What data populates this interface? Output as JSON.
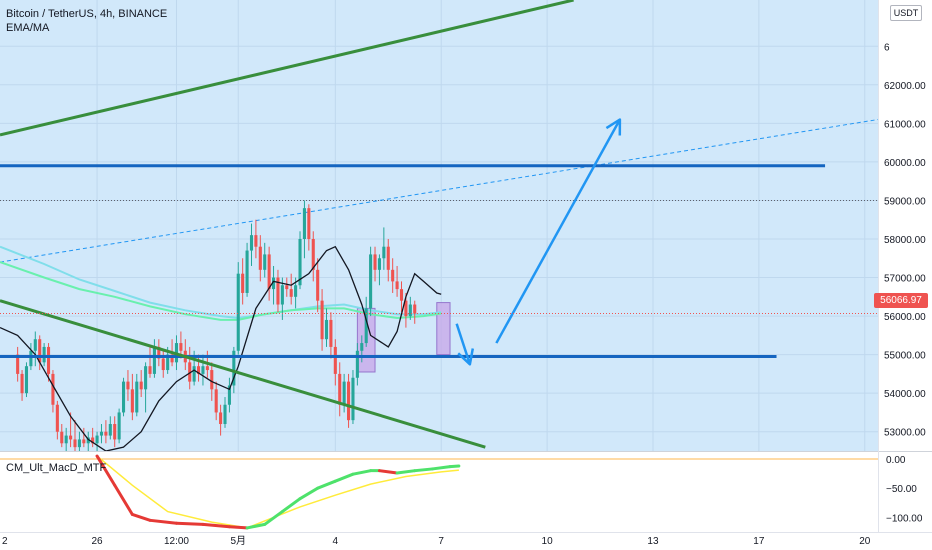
{
  "header": {
    "symbol_line": "Bitcoin / TetherUS, 4h, BINANCE",
    "indicator": "EMA/MA",
    "quote_currency": "USDT"
  },
  "indicator_pane": {
    "name": "CM_Ult_MacD_MTF"
  },
  "last_price": {
    "value": 56066.97,
    "label": "56066.97",
    "color": "#ef5350"
  },
  "colors": {
    "up": "#26a69a",
    "down": "#ef5350",
    "background": "#d1e8fa",
    "level_line": "#1565c0",
    "trend_line": "#388e3c",
    "arrow": "#2196f3",
    "ema_line": "#131722",
    "ma_green": "#69f0ae",
    "ma_cyan": "#80deea",
    "highlight_box": "#c7a6e8",
    "macd_up": "#4ee26b",
    "macd_down": "#e53935",
    "signal_line": "#ffeb3b",
    "zero_line": "#ffb74d"
  },
  "chart_data": [
    {
      "type": "candlestick",
      "title": "Bitcoin / TetherUS, 4h, BINANCE",
      "ylim": [
        52500,
        64200
      ],
      "y_ticks": [
        "53000.00",
        "54000.00",
        "55000.00",
        "56000.00",
        "57000.00",
        "58000.00",
        "59000.00",
        "60000.00",
        "61000.00",
        "62000.00",
        "6"
      ],
      "y_tick_values": [
        53000,
        54000,
        55000,
        56000,
        57000,
        58000,
        59000,
        60000,
        61000,
        62000,
        63000
      ],
      "x_ticks": [
        {
          "label": "2",
          "index": -4
        },
        {
          "label": "26",
          "index": 18
        },
        {
          "label": "12:00",
          "index": 36
        },
        {
          "label": "5月",
          "index": 50
        },
        {
          "label": "4",
          "index": 72
        },
        {
          "label": "7",
          "index": 96
        },
        {
          "label": "10",
          "index": 120
        },
        {
          "label": "13",
          "index": 144
        },
        {
          "label": "17",
          "index": 168
        },
        {
          "label": "20",
          "index": 192
        }
      ],
      "x_index_range": [
        -4,
        195
      ],
      "grid": true,
      "candles": [
        [
          55000,
          55200,
          54300,
          54500
        ],
        [
          54500,
          54600,
          53800,
          54000
        ],
        [
          54000,
          54800,
          53900,
          54700
        ],
        [
          54700,
          55300,
          54600,
          55100
        ],
        [
          55100,
          55600,
          54700,
          55400
        ],
        [
          55400,
          55500,
          54600,
          54800
        ],
        [
          54800,
          55300,
          54700,
          55200
        ],
        [
          55200,
          55300,
          54300,
          54500
        ],
        [
          54500,
          54600,
          53500,
          53700
        ],
        [
          53700,
          53800,
          52800,
          53000
        ],
        [
          53000,
          53200,
          52600,
          52700
        ],
        [
          52700,
          53100,
          52500,
          52900
        ],
        [
          52900,
          53500,
          52600,
          52800
        ],
        [
          52800,
          53300,
          52500,
          52600
        ],
        [
          52600,
          53000,
          52500,
          52800
        ],
        [
          52800,
          53100,
          52600,
          52700
        ],
        [
          52700,
          53000,
          52500,
          52850
        ],
        [
          52850,
          53100,
          52600,
          52700
        ],
        [
          52700,
          53000,
          52500,
          52900
        ],
        [
          52900,
          53200,
          52700,
          53000
        ],
        [
          53000,
          53300,
          52700,
          52900
        ],
        [
          52900,
          53400,
          52800,
          53200
        ],
        [
          53200,
          53400,
          52600,
          52800
        ],
        [
          52800,
          53600,
          52700,
          53500
        ],
        [
          53500,
          54400,
          53400,
          54300
        ],
        [
          54300,
          54600,
          53800,
          54100
        ],
        [
          54100,
          54500,
          53300,
          53500
        ],
        [
          53500,
          54500,
          53400,
          54300
        ],
        [
          54300,
          54600,
          53900,
          54100
        ],
        [
          54100,
          54800,
          53500,
          54700
        ],
        [
          54700,
          55200,
          54400,
          54500
        ],
        [
          54500,
          55400,
          54400,
          55200
        ],
        [
          55200,
          55400,
          54700,
          54900
        ],
        [
          54900,
          55100,
          54400,
          54600
        ],
        [
          54600,
          55200,
          54500,
          55000
        ],
        [
          55000,
          55400,
          54700,
          54800
        ],
        [
          54800,
          55500,
          54600,
          55300
        ],
        [
          55300,
          55600,
          54900,
          55100
        ],
        [
          55100,
          55400,
          54600,
          54800
        ],
        [
          54800,
          55200,
          54100,
          54300
        ],
        [
          54300,
          55100,
          54200,
          54700
        ],
        [
          54700,
          55000,
          54300,
          54500
        ],
        [
          54500,
          55000,
          54200,
          54700
        ],
        [
          54700,
          55100,
          54400,
          54600
        ],
        [
          54600,
          54800,
          53800,
          54100
        ],
        [
          54100,
          54300,
          53300,
          53500
        ],
        [
          53500,
          53700,
          52900,
          53200
        ],
        [
          53200,
          53900,
          53100,
          53700
        ],
        [
          53700,
          54400,
          53500,
          54200
        ],
        [
          54200,
          55200,
          54000,
          55100
        ],
        [
          55100,
          57400,
          55000,
          57100
        ],
        [
          57100,
          57500,
          56300,
          56600
        ],
        [
          56600,
          57900,
          56500,
          57700
        ],
        [
          57700,
          58400,
          57300,
          58100
        ],
        [
          58100,
          58500,
          57500,
          57800
        ],
        [
          57800,
          58100,
          56900,
          57200
        ],
        [
          57200,
          57900,
          57000,
          57600
        ],
        [
          57600,
          57800,
          56400,
          56700
        ],
        [
          56700,
          57300,
          56300,
          57000
        ],
        [
          57000,
          57200,
          56100,
          56300
        ],
        [
          56300,
          57000,
          55900,
          56800
        ],
        [
          56800,
          57000,
          56500,
          56700
        ],
        [
          56700,
          57100,
          56300,
          56500
        ],
        [
          56500,
          57000,
          56200,
          56800
        ],
        [
          56800,
          58200,
          56700,
          58000
        ],
        [
          58000,
          59000,
          57500,
          58800
        ],
        [
          58800,
          58900,
          57700,
          58000
        ],
        [
          58000,
          58200,
          56900,
          57200
        ],
        [
          57200,
          57500,
          56100,
          56400
        ],
        [
          56400,
          56700,
          55100,
          55400
        ],
        [
          55400,
          56200,
          55200,
          55900
        ],
        [
          55900,
          56100,
          54900,
          55200
        ],
        [
          55200,
          55400,
          54200,
          54500
        ],
        [
          54500,
          54800,
          53400,
          53700
        ],
        [
          53700,
          54500,
          53500,
          54300
        ],
        [
          54300,
          54500,
          53100,
          53300
        ],
        [
          53300,
          54600,
          53200,
          54400
        ],
        [
          54400,
          55300,
          54200,
          55100
        ],
        [
          55100,
          55500,
          54800,
          55300
        ],
        [
          55300,
          56500,
          55200,
          56200
        ],
        [
          56200,
          57800,
          56000,
          57600
        ],
        [
          57600,
          57800,
          56900,
          57200
        ],
        [
          57200,
          57600,
          56800,
          57500
        ],
        [
          57500,
          58300,
          57200,
          57800
        ],
        [
          57800,
          58000,
          56900,
          57200
        ],
        [
          57200,
          57500,
          56600,
          56900
        ],
        [
          56900,
          57300,
          56500,
          56700
        ],
        [
          56700,
          56900,
          56100,
          56400
        ],
        [
          56400,
          56600,
          55700,
          56000
        ],
        [
          56000,
          56500,
          55900,
          56300
        ],
        [
          56300,
          56400,
          55800,
          56067
        ]
      ],
      "candle_start_index": 0,
      "series": [
        {
          "kind": "line",
          "values": [
            [
              -4,
              55700
            ],
            [
              0,
              55500
            ],
            [
              4,
              55000
            ],
            [
              8,
              54200
            ],
            [
              12,
              53400
            ],
            [
              16,
              52800
            ],
            [
              20,
              52500
            ],
            [
              24,
              52600
            ],
            [
              28,
              53000
            ],
            [
              32,
              53800
            ],
            [
              36,
              54300
            ],
            [
              40,
              54600
            ],
            [
              44,
              54300
            ],
            [
              48,
              54100
            ],
            [
              50,
              54700
            ],
            [
              54,
              56200
            ],
            [
              58,
              56900
            ],
            [
              62,
              56800
            ],
            [
              66,
              57100
            ],
            [
              70,
              57700
            ],
            [
              72,
              57800
            ],
            [
              75,
              57200
            ],
            [
              78,
              56300
            ],
            [
              80,
              55500
            ],
            [
              84,
              55200
            ],
            [
              86,
              55600
            ],
            [
              88,
              56500
            ],
            [
              90,
              57100
            ],
            [
              92,
              56900
            ],
            [
              95,
              56600
            ],
            [
              96,
              56567
            ]
          ]
        },
        {
          "kind": "line",
          "values": [
            [
              -4,
              57400
            ],
            [
              6,
              57000
            ],
            [
              14,
              56700
            ],
            [
              22,
              56500
            ],
            [
              30,
              56250
            ],
            [
              38,
              56050
            ],
            [
              46,
              55900
            ],
            [
              50,
              55900
            ],
            [
              56,
              56050
            ],
            [
              62,
              56150
            ],
            [
              68,
              56200
            ],
            [
              74,
              56200
            ],
            [
              80,
              56050
            ],
            [
              86,
              55950
            ],
            [
              92,
              56000
            ],
            [
              96,
              56067
            ]
          ]
        },
        {
          "kind": "line",
          "values": [
            [
              -4,
              57800
            ],
            [
              6,
              57350
            ],
            [
              14,
              56950
            ],
            [
              22,
              56650
            ],
            [
              30,
              56350
            ],
            [
              38,
              56150
            ],
            [
              46,
              56000
            ],
            [
              50,
              55950
            ],
            [
              56,
              56050
            ],
            [
              62,
              56150
            ],
            [
              68,
              56250
            ],
            [
              74,
              56300
            ],
            [
              80,
              56150
            ],
            [
              86,
              56050
            ],
            [
              92,
              56050
            ],
            [
              96,
              56100
            ]
          ]
        }
      ],
      "annotations": {
        "horizontal_levels": [
          {
            "price": 59900,
            "from": -4,
            "to": 183
          },
          {
            "price": 54950,
            "from": -4,
            "to": 172
          }
        ],
        "dotted_level": {
          "price": 59000
        },
        "trend_lines": [
          {
            "x1": -4,
            "y1": 60700,
            "x2": 126,
            "y2": 64200
          },
          {
            "x1": -4,
            "y1": 56400,
            "x2": 106,
            "y2": 52600
          }
        ],
        "dashed_channel": {
          "x1": -4,
          "y1": 57400,
          "x2": 195,
          "y2": 61100
        },
        "boxes": [
          {
            "x1": 77,
            "x2": 81,
            "y1": 56200,
            "y2": 54550
          },
          {
            "x1": 95,
            "x2": 98,
            "y1": 56350,
            "y2": 55000
          }
        ],
        "arrows": [
          {
            "points": [
              [
                99.5,
                55800
              ],
              [
                102.5,
                54750
              ]
            ]
          },
          {
            "points": [
              [
                108.5,
                55300
              ],
              [
                136.5,
                61100
              ]
            ]
          }
        ]
      }
    },
    {
      "type": "line",
      "title": "CM_Ult_MacD_MTF",
      "ylim": [
        -125,
        12
      ],
      "y_ticks": [
        "0.00",
        "−50.00",
        "−100.00"
      ],
      "y_tick_values": [
        0,
        -50,
        -100
      ],
      "zero_line": 0,
      "series": [
        {
          "kind": "macd",
          "values": [
            [
              18,
              5
            ],
            [
              22,
              -45
            ],
            [
              26,
              -95
            ],
            [
              30,
              -105
            ],
            [
              36,
              -110
            ],
            [
              42,
              -112
            ],
            [
              48,
              -116
            ],
            [
              52,
              -118
            ],
            [
              56,
              -112
            ],
            [
              60,
              -90
            ],
            [
              64,
              -68
            ],
            [
              68,
              -50
            ],
            [
              72,
              -38
            ],
            [
              76,
              -26
            ],
            [
              80,
              -20
            ],
            [
              82,
              -20
            ],
            [
              86,
              -24
            ],
            [
              90,
              -20
            ],
            [
              94,
              -17
            ],
            [
              98,
              -13
            ],
            [
              100,
              -12
            ]
          ]
        },
        {
          "kind": "signal",
          "values": [
            [
              18,
              5
            ],
            [
              26,
              -45
            ],
            [
              34,
              -90
            ],
            [
              44,
              -108
            ],
            [
              52,
              -118
            ],
            [
              58,
              -100
            ],
            [
              64,
              -82
            ],
            [
              72,
              -62
            ],
            [
              80,
              -43
            ],
            [
              88,
              -30
            ],
            [
              96,
              -22
            ],
            [
              100,
              -19
            ]
          ]
        }
      ]
    }
  ]
}
